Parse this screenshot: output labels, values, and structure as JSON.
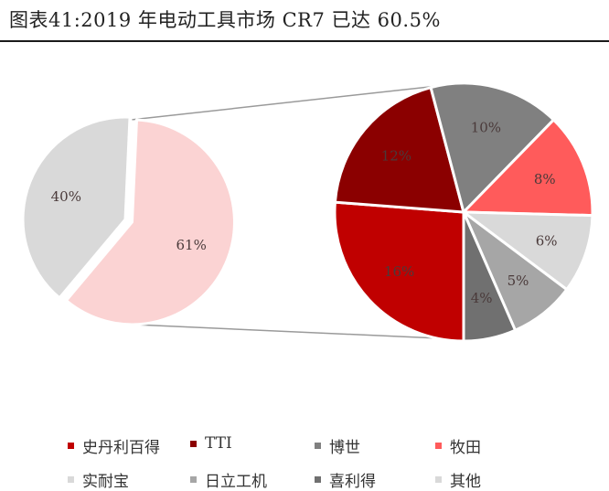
{
  "header": {
    "title": "图表41:2019 年电动工具市场 CR7 已达 60.5%"
  },
  "chart_data": [
    {
      "type": "pie",
      "slices": [
        {
          "label": "",
          "value": 40,
          "display": "40%",
          "color": "#d9d9d9"
        },
        {
          "label": "",
          "value": 61,
          "display": "61%",
          "color": "#fbd3d3"
        }
      ]
    },
    {
      "type": "pie",
      "slices": [
        {
          "label": "史丹利百得",
          "value": 16,
          "display": "16%",
          "color": "#c00000"
        },
        {
          "label": "TTI",
          "value": 12,
          "display": "12%",
          "color": "#8b0000"
        },
        {
          "label": "博世",
          "value": 10,
          "display": "10%",
          "color": "#808080"
        },
        {
          "label": "牧田",
          "value": 8,
          "display": "8%",
          "color": "#ff5b5b"
        },
        {
          "label": "实耐宝",
          "value": 6,
          "display": "6%",
          "color": "#d9d9d9"
        },
        {
          "label": "日立工机",
          "value": 5,
          "display": "5%",
          "color": "#a6a6a6"
        },
        {
          "label": "喜利得",
          "value": 4,
          "display": "4%",
          "color": "#707070"
        }
      ]
    }
  ],
  "legend": {
    "items": [
      {
        "label": "史丹利百得",
        "color": "#c00000"
      },
      {
        "label": "TTI",
        "color": "#8b0000"
      },
      {
        "label": "博世",
        "color": "#808080"
      },
      {
        "label": "牧田",
        "color": "#ff5b5b"
      },
      {
        "label": "实耐宝",
        "color": "#d9d9d9"
      },
      {
        "label": "日立工机",
        "color": "#a6a6a6"
      },
      {
        "label": "喜利得",
        "color": "#707070"
      },
      {
        "label": "其他",
        "color": "#d9d9d9"
      }
    ]
  }
}
